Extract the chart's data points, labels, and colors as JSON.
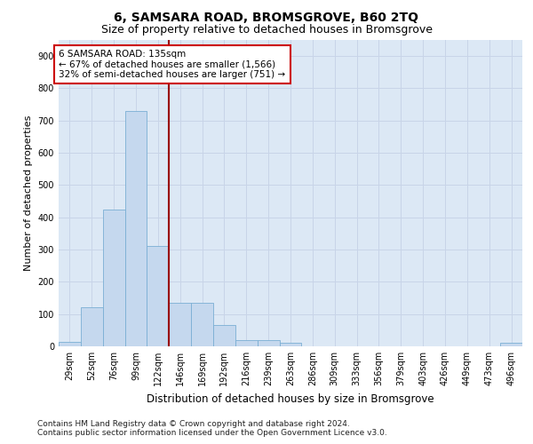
{
  "title": "6, SAMSARA ROAD, BROMSGROVE, B60 2TQ",
  "subtitle": "Size of property relative to detached houses in Bromsgrove",
  "xlabel": "Distribution of detached houses by size in Bromsgrove",
  "ylabel": "Number of detached properties",
  "categories": [
    "29sqm",
    "52sqm",
    "76sqm",
    "99sqm",
    "122sqm",
    "146sqm",
    "169sqm",
    "192sqm",
    "216sqm",
    "239sqm",
    "263sqm",
    "286sqm",
    "309sqm",
    "333sqm",
    "356sqm",
    "379sqm",
    "403sqm",
    "426sqm",
    "449sqm",
    "473sqm",
    "496sqm"
  ],
  "values": [
    15,
    120,
    425,
    730,
    310,
    135,
    135,
    65,
    20,
    20,
    10,
    0,
    0,
    0,
    0,
    0,
    0,
    0,
    0,
    0,
    10
  ],
  "bar_color": "#c5d8ee",
  "bar_edge_color": "#7aafd4",
  "vline_x": 4.5,
  "vline_color": "#990000",
  "annotation_text": "6 SAMSARA ROAD: 135sqm\n← 67% of detached houses are smaller (1,566)\n32% of semi-detached houses are larger (751) →",
  "annotation_box_color": "white",
  "annotation_box_edge": "#cc0000",
  "ylim": [
    0,
    950
  ],
  "yticks": [
    0,
    100,
    200,
    300,
    400,
    500,
    600,
    700,
    800,
    900
  ],
  "grid_color": "#c8d4e8",
  "background_color": "#dce8f5",
  "footer": "Contains HM Land Registry data © Crown copyright and database right 2024.\nContains public sector information licensed under the Open Government Licence v3.0.",
  "title_fontsize": 10,
  "subtitle_fontsize": 9,
  "xlabel_fontsize": 8.5,
  "ylabel_fontsize": 8,
  "tick_fontsize": 7,
  "footer_fontsize": 6.5,
  "annot_fontsize": 7.5
}
